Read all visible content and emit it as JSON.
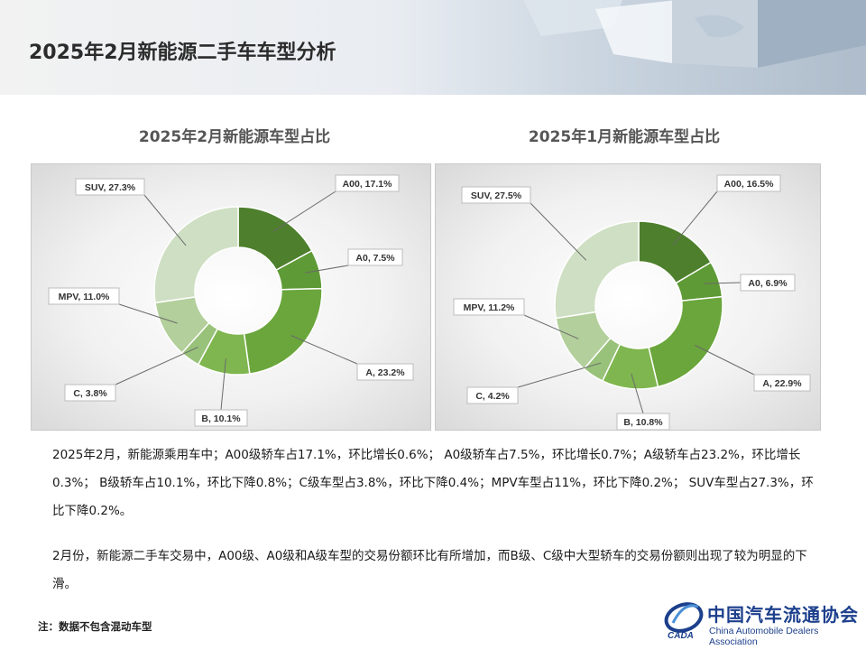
{
  "page": {
    "title": "2025年2月新能源二手车车型分析",
    "paragraph1": "2025年2月，新能源乘用车中；A00级轿车占17.1%，环比增长0.6%； A0级轿车占7.5%，环比增长0.7%；A级轿车占23.2%，环比增长0.3%； B级轿车占10.1%，环比下降0.8%；C级车型占3.8%，环比下降0.4%；MPV车型占11%，环比下降0.2%； SUV车型占27.3%，环比下降0.2%。",
    "paragraph2": "2月份，新能源二手车交易中，A00级、A0级和A级车型的交易份额环比有所增加，而B级、C级中大型轿车的交易份额则出现了较为明显的下滑。",
    "note": "注：数据不包含混动车型",
    "logo_cn": "中国汽车流通协会",
    "logo_en": "China Automobile Dealers Association",
    "logo_mark": "CADA"
  },
  "chart_data": [
    {
      "type": "pie",
      "title": "2025年2月新能源车型占比",
      "categories": [
        "A00",
        "A0",
        "A",
        "B",
        "C",
        "MPV",
        "SUV"
      ],
      "values": [
        17.1,
        7.5,
        23.2,
        10.1,
        3.8,
        11.0,
        27.3
      ],
      "labels": [
        "A00, 17.1%",
        "A0, 7.5%",
        "A, 23.2%",
        "B, 10.1%",
        "C, 3.8%",
        "MPV, 11.0%",
        "SUV, 27.3%"
      ],
      "colors": [
        "#4d7f2c",
        "#5e9a35",
        "#6aa63c",
        "#7fb64f",
        "#98c27a",
        "#b3cf9c",
        "#cfdfc3"
      ]
    },
    {
      "type": "pie",
      "title": "2025年1月新能源车型占比",
      "categories": [
        "A00",
        "A0",
        "A",
        "B",
        "C",
        "MPV",
        "SUV"
      ],
      "values": [
        16.5,
        6.9,
        22.9,
        10.8,
        4.2,
        11.2,
        27.5
      ],
      "labels": [
        "A00, 16.5%",
        "A0, 6.9%",
        "A, 22.9%",
        "B, 10.8%",
        "C, 4.2%",
        "MPV, 11.2%",
        "SUV, 27.5%"
      ],
      "colors": [
        "#4d7f2c",
        "#5e9a35",
        "#6aa63c",
        "#7fb64f",
        "#98c27a",
        "#b3cf9c",
        "#cfdfc3"
      ]
    }
  ]
}
